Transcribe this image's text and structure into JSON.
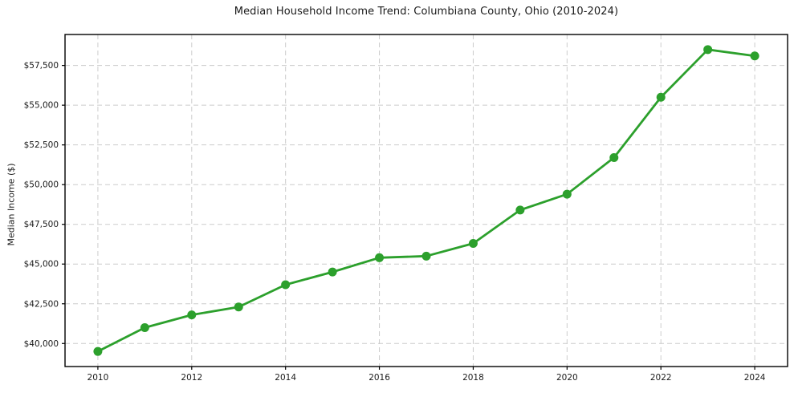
{
  "chart_data": {
    "type": "line",
    "title": "Median Household Income Trend: Columbiana County, Ohio (2010-2024)",
    "xlabel": "",
    "ylabel": "Median Income ($)",
    "x": [
      2010,
      2011,
      2012,
      2013,
      2014,
      2015,
      2016,
      2017,
      2018,
      2019,
      2020,
      2021,
      2022,
      2023,
      2024
    ],
    "values": [
      39500,
      41000,
      41800,
      42300,
      43700,
      44500,
      45400,
      45500,
      46300,
      48400,
      49400,
      51700,
      55500,
      58500,
      58100
    ],
    "series_name": "Median Household Income",
    "xticks": [
      2010,
      2012,
      2014,
      2016,
      2018,
      2020,
      2022,
      2024
    ],
    "yticks": [
      40000,
      42500,
      45000,
      47500,
      50000,
      52500,
      55000,
      57500
    ],
    "ytick_labels": [
      "$40,000",
      "$42,500",
      "$45,000",
      "$47,500",
      "$50,000",
      "$52,500",
      "$55,000",
      "$57,500"
    ],
    "xlim": [
      2009.3,
      2024.7
    ],
    "ylim": [
      38550,
      59450
    ],
    "grid": true,
    "grid_style": "dashed",
    "legend": false,
    "line_color": "#2ca02c",
    "marker": "o",
    "background_color": "#ffffff",
    "grid_color": "#cccccc",
    "spine_color": "#000000",
    "tick_text_color": "#1a1a1a"
  }
}
